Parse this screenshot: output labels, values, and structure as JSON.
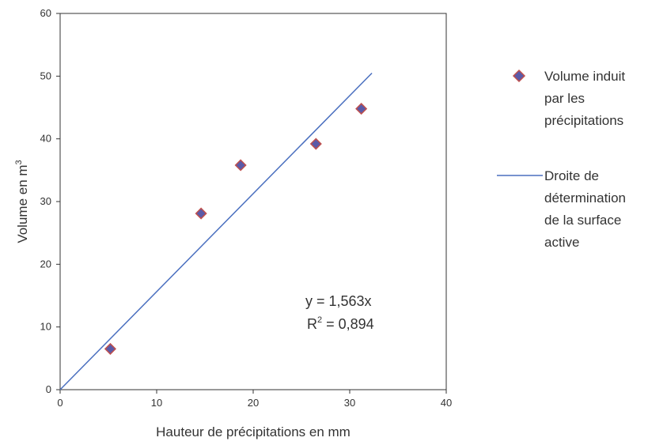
{
  "chart_data": {
    "type": "scatter",
    "xlabel": "Hauteur de précipitations en mm",
    "ylabel_text": "Volume en  m",
    "ylabel_sup": "3",
    "xlim": [
      0,
      40
    ],
    "ylim": [
      0,
      60
    ],
    "xticks": [
      0,
      10,
      20,
      30,
      40
    ],
    "yticks": [
      0,
      10,
      20,
      30,
      40,
      50,
      60
    ],
    "grid": false,
    "legend_position": "right",
    "series": [
      {
        "name_lines": [
          "Volume induit",
          "par les",
          "précipitations"
        ],
        "kind": "points",
        "marker": "diamond",
        "fill_color": "#5a5aa8",
        "edge_color": "#c0504d",
        "x": [
          5.2,
          14.6,
          18.7,
          26.5,
          31.2
        ],
        "y": [
          6.5,
          28.1,
          35.8,
          39.2,
          44.8
        ]
      },
      {
        "name_lines": [
          "Droite de",
          "détermination",
          "de la surface",
          "active"
        ],
        "kind": "line",
        "color": "#4a6fbf",
        "slope": 1.563,
        "x_range": [
          0,
          32.3
        ]
      }
    ],
    "annotations": {
      "equation": "y = 1,563x",
      "r2_prefix": "R",
      "r2_sup": "2",
      "r2_value": " = 0,894"
    }
  }
}
